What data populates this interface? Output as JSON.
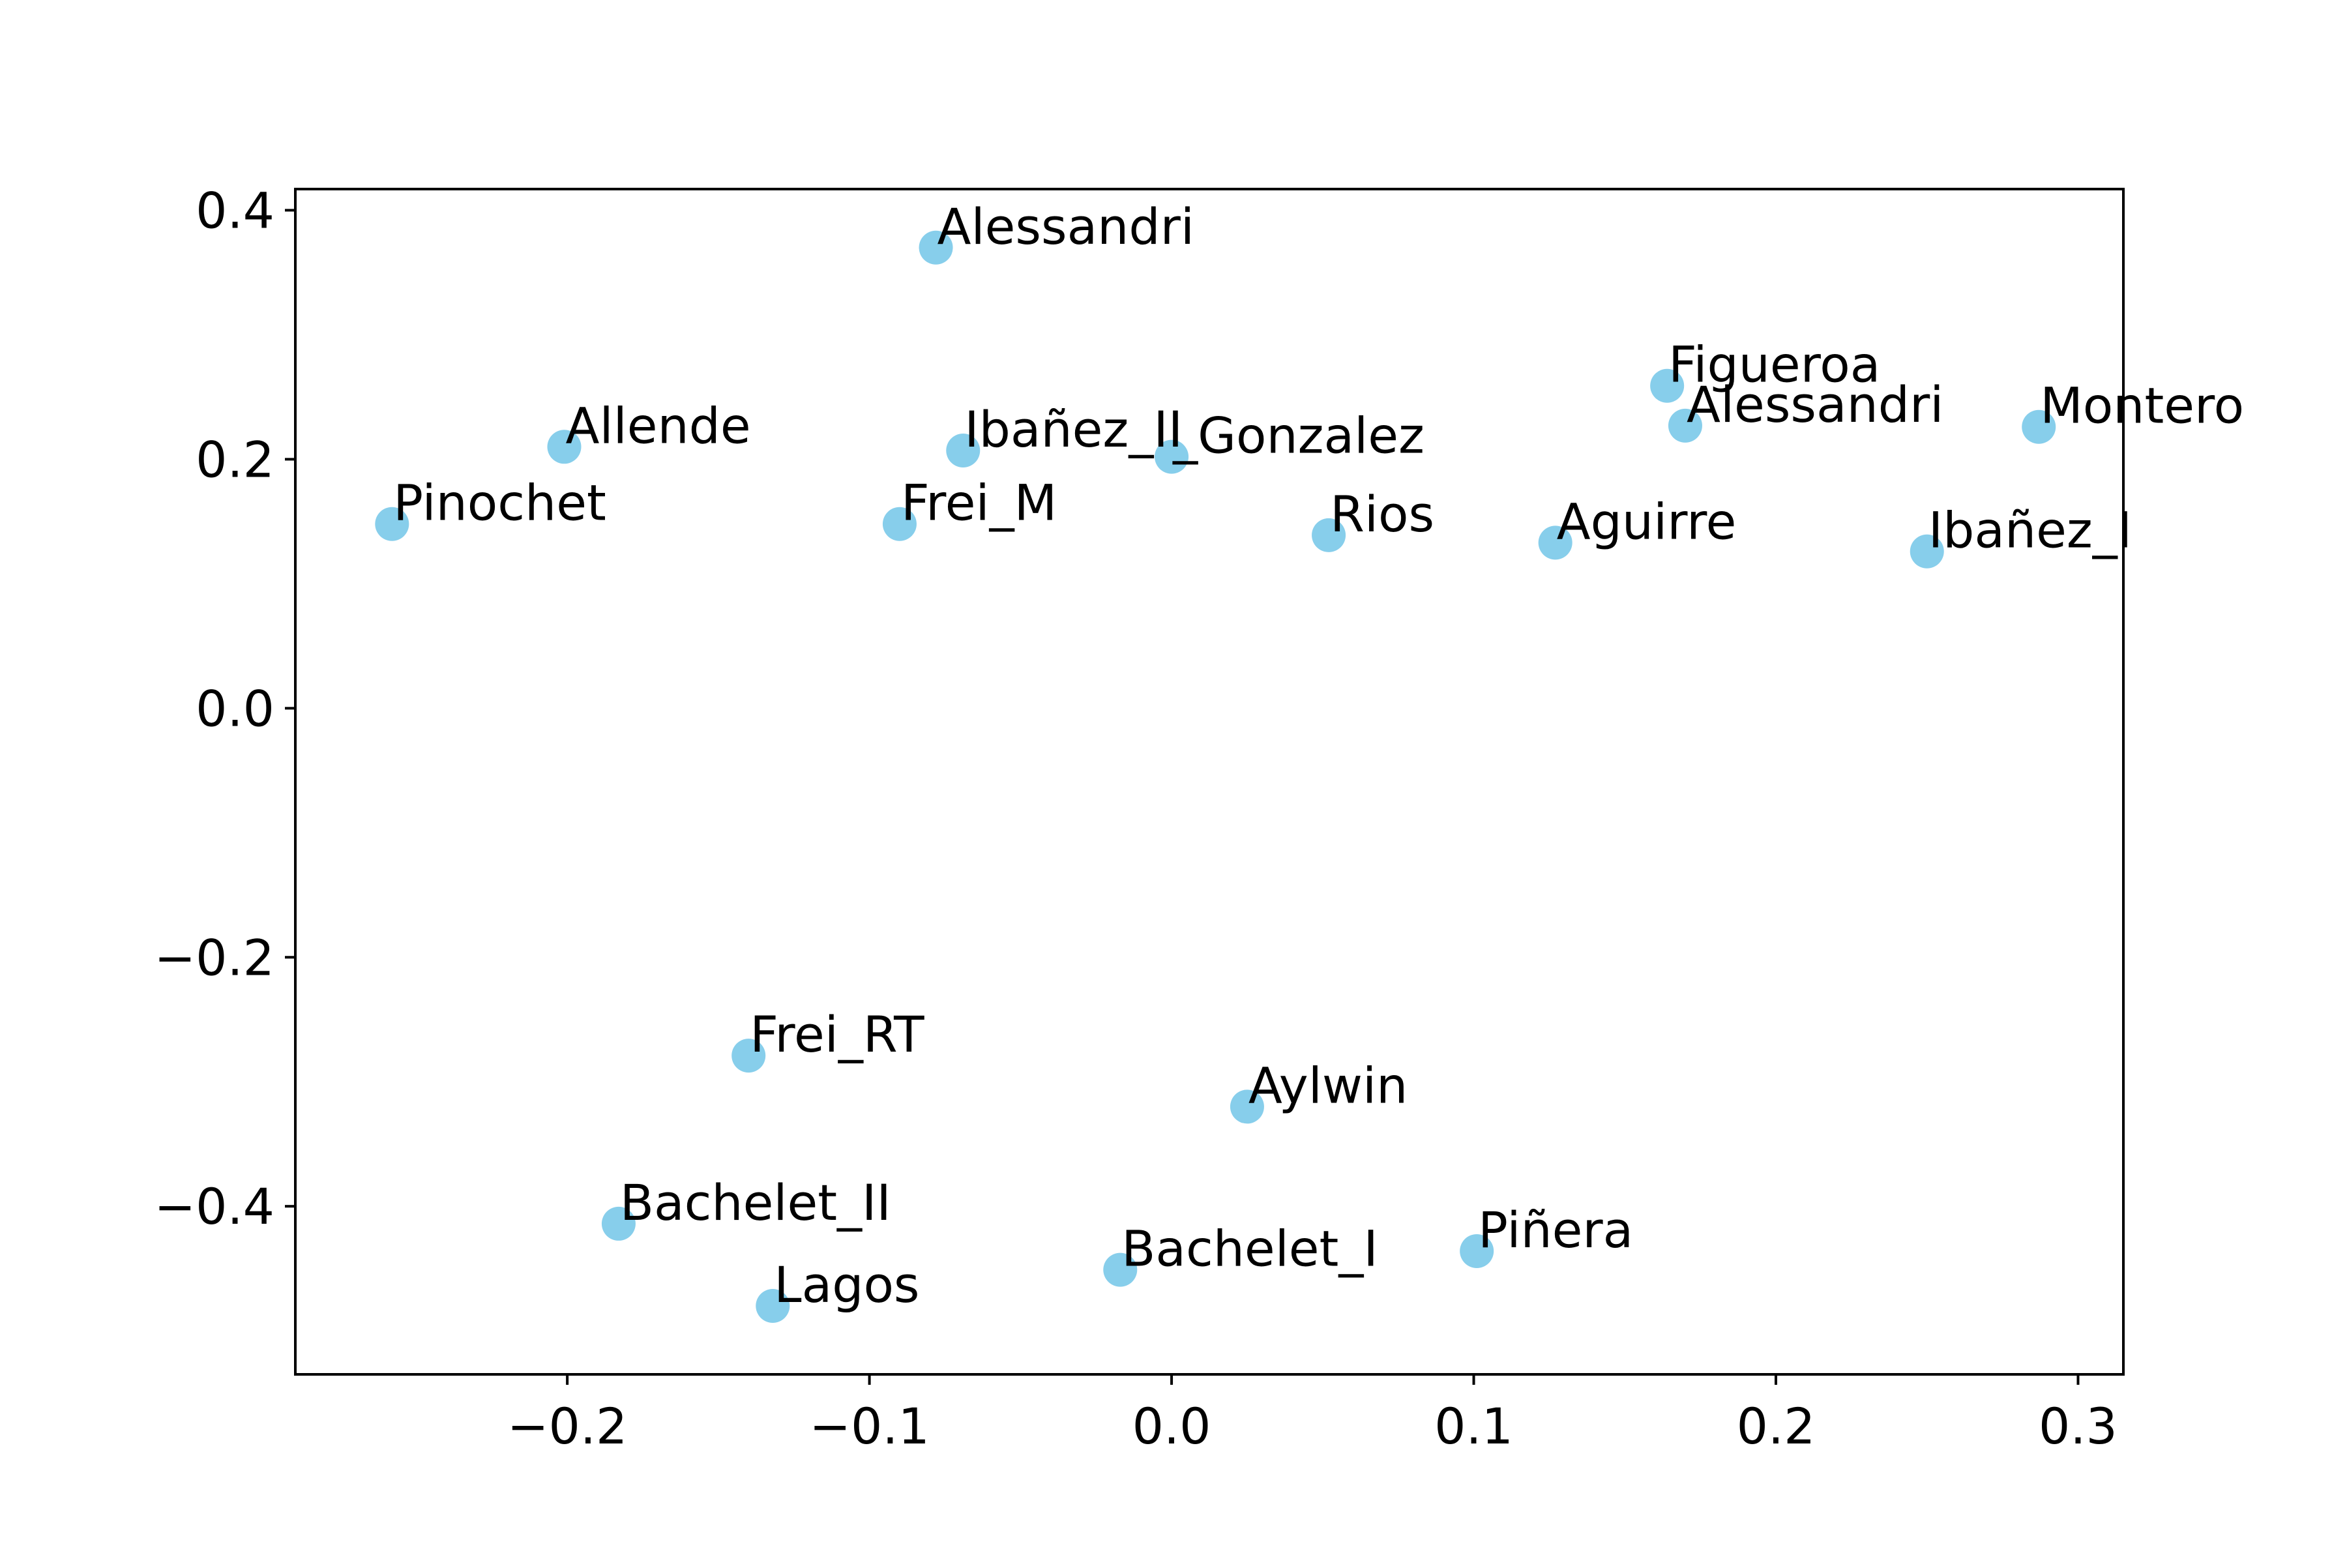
{
  "chart_data": {
    "type": "scatter",
    "title": "",
    "xlabel": "",
    "ylabel": "",
    "xlim": [
      -0.29,
      0.315
    ],
    "ylim": [
      -0.535,
      0.417
    ],
    "grid": false,
    "xticks": [
      {
        "value": -0.2,
        "label": "−0.2"
      },
      {
        "value": -0.1,
        "label": "−0.1"
      },
      {
        "value": 0.0,
        "label": "0.0"
      },
      {
        "value": 0.1,
        "label": "0.1"
      },
      {
        "value": 0.2,
        "label": "0.2"
      },
      {
        "value": 0.3,
        "label": "0.3"
      }
    ],
    "yticks": [
      {
        "value": 0.4,
        "label": "0.4"
      },
      {
        "value": 0.2,
        "label": "0.2"
      },
      {
        "value": 0.0,
        "label": "0.0"
      },
      {
        "value": -0.2,
        "label": "−0.2"
      },
      {
        "value": -0.4,
        "label": "−0.4"
      }
    ],
    "marker_color": "#87ceeb",
    "points": [
      {
        "label": "Alessandri",
        "x": -0.078,
        "y": 0.37
      },
      {
        "label": "Allende",
        "x": -0.201,
        "y": 0.21
      },
      {
        "label": "Pinochet",
        "x": -0.258,
        "y": 0.148
      },
      {
        "label": "Ibañez_II",
        "x": -0.069,
        "y": 0.207
      },
      {
        "label": "Frei_M",
        "x": -0.09,
        "y": 0.148
      },
      {
        "label": "_Gonzalez",
        "x": 0.0,
        "y": 0.202
      },
      {
        "label": "Rios",
        "x": 0.052,
        "y": 0.139
      },
      {
        "label": "Figueroa",
        "x": 0.164,
        "y": 0.259
      },
      {
        "label": "Alessandri",
        "x": 0.17,
        "y": 0.227
      },
      {
        "label": "Montero",
        "x": 0.287,
        "y": 0.226
      },
      {
        "label": "Aguirre",
        "x": 0.127,
        "y": 0.133
      },
      {
        "label": "Ibañez_I",
        "x": 0.25,
        "y": 0.126
      },
      {
        "label": "Frei_RT",
        "x": -0.14,
        "y": -0.279
      },
      {
        "label": "Aylwin",
        "x": 0.025,
        "y": -0.32
      },
      {
        "label": "Bachelet_II",
        "x": -0.183,
        "y": -0.414
      },
      {
        "label": "Lagos",
        "x": -0.132,
        "y": -0.48
      },
      {
        "label": "Bachelet_I",
        "x": -0.017,
        "y": -0.451
      },
      {
        "label": "Piñera",
        "x": 0.101,
        "y": -0.436
      }
    ]
  }
}
